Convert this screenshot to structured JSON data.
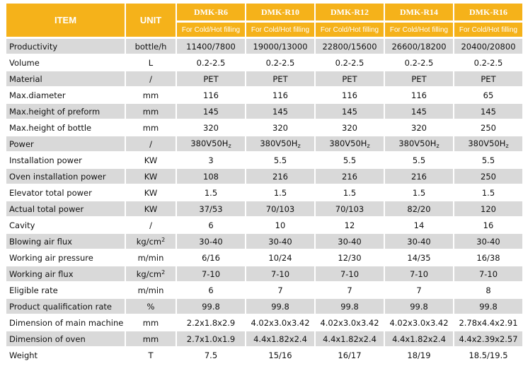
{
  "header": {
    "item": "ITEM",
    "unit": "UNIT",
    "models": [
      "DMK-R6",
      "DMK-R10",
      "DMK-R12",
      "DMK-R14",
      "DMK-R16"
    ],
    "subtitle": "For Cold/Hot filling"
  },
  "rows": [
    {
      "item": "Productivity",
      "unit": "bottle/h",
      "values": [
        "11400/7800",
        "19000/13000",
        "22800/15600",
        "26600/18200",
        "20400/20800"
      ]
    },
    {
      "item": "Volume",
      "unit": "L",
      "values": [
        "0.2-2.5",
        "0.2-2.5",
        "0.2-2.5",
        "0.2-2.5",
        "0.2-2.5"
      ]
    },
    {
      "item": "Material",
      "unit": "/",
      "values": [
        "PET",
        "PET",
        "PET",
        "PET",
        "PET"
      ]
    },
    {
      "item": "Max.diameter",
      "unit": "mm",
      "values": [
        "116",
        "116",
        "116",
        "116",
        "65"
      ]
    },
    {
      "item": "Max.height of preform",
      "unit": "mm",
      "values": [
        "145",
        "145",
        "145",
        "145",
        "145"
      ]
    },
    {
      "item": "Max.height of bottle",
      "unit": "mm",
      "values": [
        "320",
        "320",
        "320",
        "320",
        "250"
      ]
    },
    {
      "item": "Power",
      "unit": "/",
      "values": [
        "380V50H",
        "380V50H",
        "380V50H",
        "380V50H",
        "380V50H"
      ],
      "value_sub": "z"
    },
    {
      "item": "Installation power",
      "unit": "KW",
      "values": [
        "3",
        "5.5",
        "5.5",
        "5.5",
        "5.5"
      ]
    },
    {
      "item": "Oven installation power",
      "unit": "KW",
      "values": [
        "108",
        "216",
        "216",
        "216",
        "250"
      ]
    },
    {
      "item": "Elevator total power",
      "unit": "KW",
      "values": [
        "1.5",
        "1.5",
        "1.5",
        "1.5",
        "1.5"
      ]
    },
    {
      "item": "Actual total power",
      "unit": "KW",
      "values": [
        "37/53",
        "70/103",
        "70/103",
        "82/20",
        "120"
      ]
    },
    {
      "item": "Cavity",
      "unit": "/",
      "values": [
        "6",
        "10",
        "12",
        "14",
        "16"
      ]
    },
    {
      "item": "Blowing air flux",
      "unit": "kg/cm",
      "unit_sup": "2",
      "values": [
        "30-40",
        "30-40",
        "30-40",
        "30-40",
        "30-40"
      ]
    },
    {
      "item": "Working air pressure",
      "unit": "m/min",
      "values": [
        "6/16",
        "10/24",
        "12/30",
        "14/35",
        "16/38"
      ]
    },
    {
      "item": "Working air flux",
      "unit": "kg/cm",
      "unit_sup": "2",
      "values": [
        "7-10",
        "7-10",
        "7-10",
        "7-10",
        "7-10"
      ]
    },
    {
      "item": "Eligible rate",
      "unit": "m/min",
      "values": [
        "6",
        "7",
        "7",
        "7",
        "8"
      ]
    },
    {
      "item": "Product qualification rate",
      "unit": "%",
      "values": [
        "99.8",
        "99.8",
        "99.8",
        "99.8",
        "99.8"
      ]
    },
    {
      "item": "Dimension of main machine",
      "unit": "mm",
      "values": [
        "2.2x1.8x2.9",
        "4.02x3.0x3.42",
        "4.02x3.0x3.42",
        "4.02x3.0x3.42",
        "2.78x4.4x2.91"
      ]
    },
    {
      "item": "Dimension of oven",
      "unit": "mm",
      "values": [
        "2.7x1.0x1.9",
        "4.4x1.82x2.4",
        "4.4x1.82x2.4",
        "4.4x1.82x2.4",
        "4.4x2.39x2.57"
      ]
    },
    {
      "item": "Weight",
      "unit": "T",
      "values": [
        "7.5",
        "15/16",
        "16/17",
        "18/19",
        "18.5/19.5"
      ]
    }
  ]
}
